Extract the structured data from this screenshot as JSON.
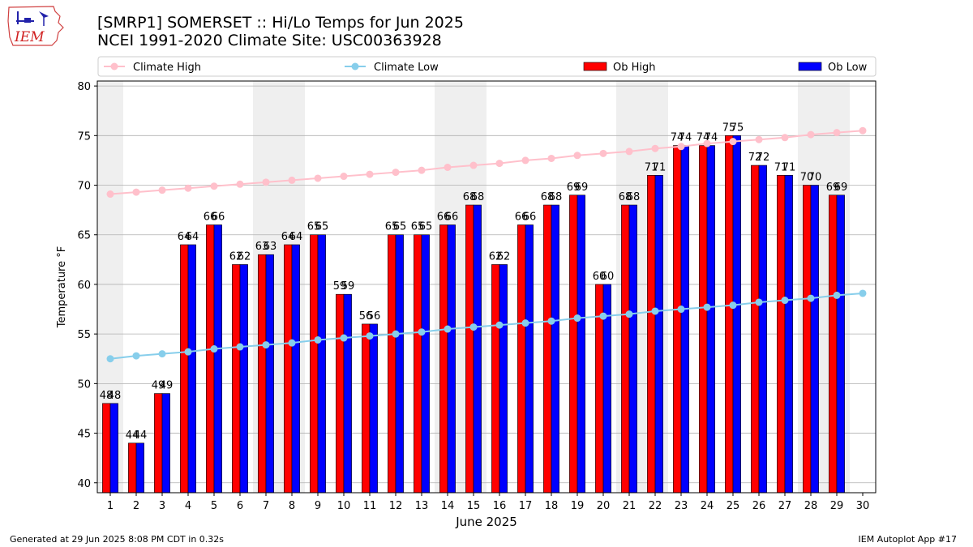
{
  "header": {
    "title_line1": "[SMRP1] SOMERSET :: Hi/Lo Temps for Jun 2025",
    "title_line2": "NCEI 1991-2020 Climate Site: USC00363928"
  },
  "logo": {
    "icon": "iem-logo-icon",
    "text": "IEM"
  },
  "footer": {
    "left": "Generated at 29 Jun 2025 8:08 PM CDT in 0.32s",
    "right": "IEM Autoplot App #17"
  },
  "chart_data": {
    "type": "bar",
    "xlabel": "June 2025",
    "ylabel": "Temperature °F",
    "xlim": [
      0.5,
      30.5
    ],
    "ylim": [
      39,
      80.5
    ],
    "grid": true,
    "legend_placement": "top",
    "x_ticks": [
      1,
      2,
      3,
      4,
      5,
      6,
      7,
      8,
      9,
      10,
      11,
      12,
      13,
      14,
      15,
      16,
      17,
      18,
      19,
      20,
      21,
      22,
      23,
      24,
      25,
      26,
      27,
      28,
      29,
      30
    ],
    "y_ticks": [
      40,
      45,
      50,
      55,
      60,
      65,
      70,
      75,
      80
    ],
    "weekend_shading": [
      [
        0.5,
        1.5
      ],
      [
        6.5,
        8.5
      ],
      [
        13.5,
        15.5
      ],
      [
        20.5,
        22.5
      ],
      [
        27.5,
        29.5
      ]
    ],
    "colors": {
      "ob_high": "#ff0000",
      "ob_low": "#0000ff",
      "climate_high": "#ffc0cb",
      "climate_low": "#87ceeb",
      "shade": "#efefef"
    },
    "series": [
      {
        "name": "Climate High",
        "kind": "line",
        "x": [
          1,
          2,
          3,
          4,
          5,
          6,
          7,
          8,
          9,
          10,
          11,
          12,
          13,
          14,
          15,
          16,
          17,
          18,
          19,
          20,
          21,
          22,
          23,
          24,
          25,
          26,
          27,
          28,
          29,
          30
        ],
        "values": [
          69.1,
          69.3,
          69.5,
          69.7,
          69.9,
          70.1,
          70.3,
          70.5,
          70.7,
          70.9,
          71.1,
          71.3,
          71.5,
          71.8,
          72.0,
          72.2,
          72.5,
          72.7,
          73.0,
          73.2,
          73.4,
          73.7,
          73.9,
          74.2,
          74.4,
          74.6,
          74.8,
          75.1,
          75.3,
          75.5
        ]
      },
      {
        "name": "Climate Low",
        "kind": "line",
        "x": [
          1,
          2,
          3,
          4,
          5,
          6,
          7,
          8,
          9,
          10,
          11,
          12,
          13,
          14,
          15,
          16,
          17,
          18,
          19,
          20,
          21,
          22,
          23,
          24,
          25,
          26,
          27,
          28,
          29,
          30
        ],
        "values": [
          52.5,
          52.8,
          53.0,
          53.2,
          53.5,
          53.7,
          53.9,
          54.1,
          54.4,
          54.6,
          54.8,
          55.0,
          55.2,
          55.5,
          55.7,
          55.9,
          56.1,
          56.3,
          56.6,
          56.8,
          57.0,
          57.3,
          57.5,
          57.7,
          57.9,
          58.2,
          58.4,
          58.6,
          58.9,
          59.1
        ]
      },
      {
        "name": "Ob High",
        "kind": "bar",
        "x": [
          1,
          2,
          3,
          4,
          5,
          6,
          7,
          8,
          9,
          10,
          11,
          12,
          13,
          14,
          15,
          16,
          17,
          18,
          19,
          20,
          21,
          22,
          23,
          24,
          25,
          26,
          27,
          28,
          29
        ],
        "values": [
          48,
          44,
          49,
          64,
          66,
          62,
          63,
          64,
          65,
          59,
          56,
          65,
          65,
          66,
          68,
          62,
          66,
          68,
          69,
          60,
          68,
          71,
          74,
          74,
          75,
          72,
          71,
          70,
          69
        ]
      },
      {
        "name": "Ob Low",
        "kind": "bar",
        "x": [
          1,
          2,
          3,
          4,
          5,
          6,
          7,
          8,
          9,
          10,
          11,
          12,
          13,
          14,
          15,
          16,
          17,
          18,
          19,
          20,
          21,
          22,
          23,
          24,
          25,
          26,
          27,
          28,
          29
        ],
        "values": [
          48,
          44,
          49,
          64,
          66,
          62,
          63,
          64,
          65,
          59,
          56,
          65,
          65,
          66,
          68,
          62,
          66,
          68,
          69,
          60,
          68,
          71,
          74,
          74,
          75,
          72,
          71,
          70,
          69
        ]
      }
    ],
    "data_labels_high": [
      "48",
      "44",
      "49",
      "64",
      "66",
      "62",
      "63",
      "64",
      "65",
      "59",
      "56",
      "65",
      "65",
      "66",
      "68",
      "62",
      "66",
      "68",
      "69",
      "60",
      "68",
      "71",
      "74",
      "74",
      "75",
      "72",
      "71",
      "70",
      "69"
    ],
    "data_labels_low": [
      "48",
      "44",
      "49",
      "64",
      "66",
      "62",
      "63",
      "64",
      "65",
      "59",
      "56",
      "65",
      "65",
      "66",
      "68",
      "62",
      "66",
      "68",
      "69",
      "60",
      "68",
      "71",
      "74",
      "74",
      "75",
      "72",
      "71",
      "70",
      "69"
    ]
  }
}
